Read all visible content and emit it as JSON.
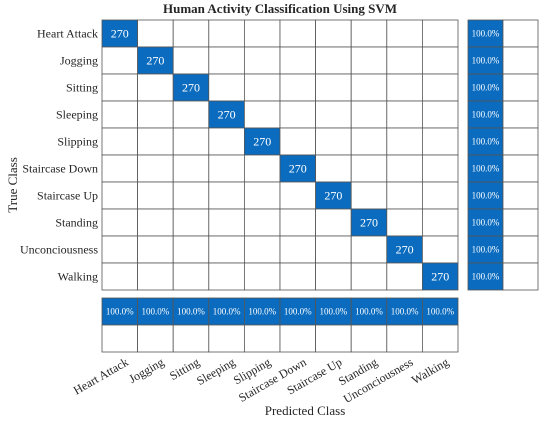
{
  "chart_data": {
    "type": "confusion",
    "title": "Human Activity Classification Using SVM",
    "xlabel": "Predicted Class",
    "ylabel": "True Class",
    "color": "#0b6cbf",
    "categories": [
      "Heart Attack",
      "Jogging",
      "Sitting",
      "Sleeping",
      "Slipping",
      "Staircase Down",
      "Staircase Up",
      "Standing",
      "Unconciousness",
      "Walking"
    ],
    "matrix": [
      [
        270,
        null,
        null,
        null,
        null,
        null,
        null,
        null,
        null,
        null
      ],
      [
        null,
        270,
        null,
        null,
        null,
        null,
        null,
        null,
        null,
        null
      ],
      [
        null,
        null,
        270,
        null,
        null,
        null,
        null,
        null,
        null,
        null
      ],
      [
        null,
        null,
        null,
        270,
        null,
        null,
        null,
        null,
        null,
        null
      ],
      [
        null,
        null,
        null,
        null,
        270,
        null,
        null,
        null,
        null,
        null
      ],
      [
        null,
        null,
        null,
        null,
        null,
        270,
        null,
        null,
        null,
        null
      ],
      [
        null,
        null,
        null,
        null,
        null,
        null,
        270,
        null,
        null,
        null
      ],
      [
        null,
        null,
        null,
        null,
        null,
        null,
        null,
        270,
        null,
        null
      ],
      [
        null,
        null,
        null,
        null,
        null,
        null,
        null,
        null,
        270,
        null
      ],
      [
        null,
        null,
        null,
        null,
        null,
        null,
        null,
        null,
        null,
        270
      ]
    ],
    "row_summary": {
      "values": [
        100,
        100,
        100,
        100,
        100,
        100,
        100,
        100,
        100,
        100
      ],
      "value_labels": [
        "100.0%",
        "100.0%",
        "100.0%",
        "100.0%",
        "100.0%",
        "100.0%",
        "100.0%",
        "100.0%",
        "100.0%",
        "100.0%"
      ]
    },
    "column_summary": {
      "values": [
        100,
        100,
        100,
        100,
        100,
        100,
        100,
        100,
        100,
        100
      ],
      "value_labels": [
        "100.0%",
        "100.0%",
        "100.0%",
        "100.0%",
        "100.0%",
        "100.0%",
        "100.0%",
        "100.0%",
        "100.0%",
        "100.0%"
      ]
    }
  }
}
